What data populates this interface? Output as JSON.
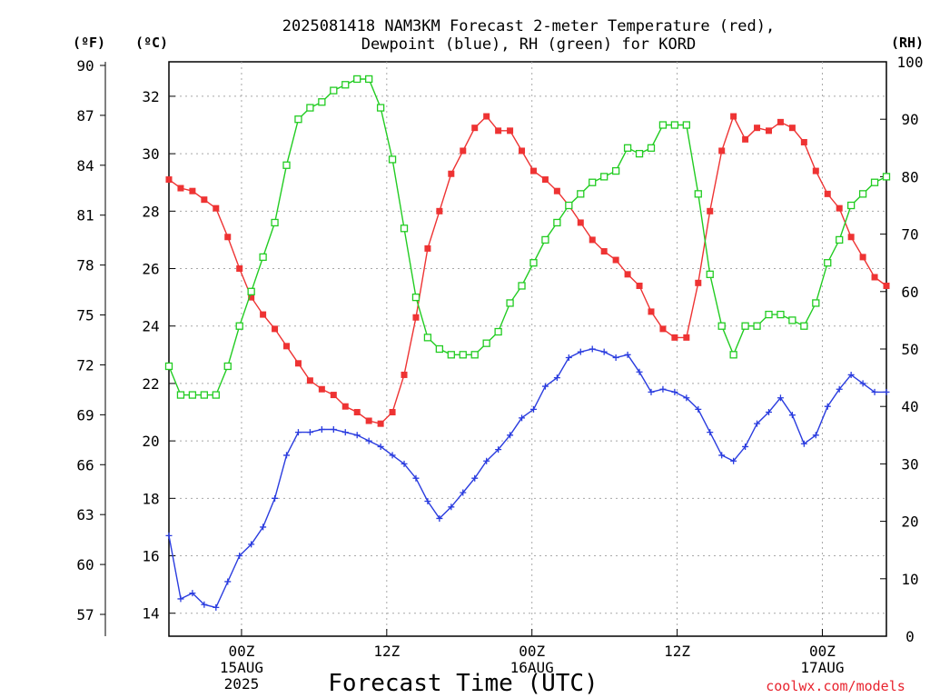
{
  "chart_data": {
    "type": "line",
    "title_lines": [
      "2025081418 NAM3KM Forecast 2-meter Temperature (red),",
      "Dewpoint (blue), RH (green) for KORD"
    ],
    "xlabel": "Forecast Time (UTC)",
    "credit": "coolwx.com/models",
    "units": {
      "fahrenheit": "(ºF)",
      "celsius": "(ºC)",
      "rh": "(RH)"
    },
    "x_hours_from_start": [
      0,
      84
    ],
    "x_ticks": [
      {
        "hour": 8.5,
        "lines": [
          "00Z",
          "15AUG",
          "2025"
        ]
      },
      {
        "hour": 25.5,
        "lines": [
          "12Z"
        ]
      },
      {
        "hour": 42.5,
        "lines": [
          "00Z",
          "16AUG"
        ]
      },
      {
        "hour": 59.5,
        "lines": [
          "12Z"
        ]
      },
      {
        "hour": 76.5,
        "lines": [
          "00Z",
          "17AUG"
        ]
      }
    ],
    "celsius_axis": {
      "range": [
        13.2,
        33.2
      ],
      "ticks": [
        14,
        16,
        18,
        20,
        22,
        24,
        26,
        28,
        30,
        32
      ]
    },
    "fahrenheit_ticks": [
      "90",
      "87",
      "84",
      "81",
      "78",
      "75",
      "72",
      "69",
      "66",
      "63",
      "60",
      "57"
    ],
    "rh_axis": {
      "range": [
        0,
        100
      ],
      "ticks": [
        0,
        10,
        20,
        30,
        40,
        50,
        60,
        70,
        80,
        90,
        100
      ]
    },
    "grid": true,
    "series": [
      {
        "name": "Temperature",
        "axis": "celsius",
        "color": "#ee3333",
        "marker": "filled-square",
        "values": [
          29.1,
          28.8,
          28.7,
          28.4,
          28.1,
          27.1,
          26.0,
          25.0,
          24.4,
          23.9,
          23.3,
          22.7,
          22.1,
          21.8,
          21.6,
          21.2,
          21.0,
          20.7,
          20.6,
          21.0,
          22.3,
          24.3,
          26.7,
          28.0,
          29.3,
          30.1,
          30.9,
          31.3,
          30.8,
          30.8,
          30.1,
          29.4,
          29.1,
          28.7,
          28.2,
          27.6,
          27.0,
          26.6,
          26.3,
          25.8,
          25.4,
          24.5,
          23.9,
          23.6,
          23.6,
          25.5,
          28.0,
          30.1,
          31.3,
          30.5,
          30.9,
          30.8,
          31.1,
          30.9,
          30.4,
          29.4,
          28.6,
          28.1,
          27.1,
          26.4,
          25.7,
          25.4
        ]
      },
      {
        "name": "Dewpoint",
        "axis": "celsius",
        "color": "#2a3cdf",
        "marker": "plus",
        "values": [
          16.7,
          14.5,
          14.7,
          14.3,
          14.2,
          15.1,
          16.0,
          16.4,
          17.0,
          18.0,
          19.5,
          20.3,
          20.3,
          20.4,
          20.4,
          20.3,
          20.2,
          20.0,
          19.8,
          19.5,
          19.2,
          18.7,
          17.9,
          17.3,
          17.7,
          18.2,
          18.7,
          19.3,
          19.7,
          20.2,
          20.8,
          21.1,
          21.9,
          22.2,
          22.9,
          23.1,
          23.2,
          23.1,
          22.9,
          23.0,
          22.4,
          21.7,
          21.8,
          21.7,
          21.5,
          21.1,
          20.3,
          19.5,
          19.3,
          19.8,
          20.6,
          21.0,
          21.5,
          20.9,
          19.9,
          20.2,
          21.2,
          21.8,
          22.3,
          22.0,
          21.7,
          21.7
        ]
      },
      {
        "name": "RH",
        "axis": "rh",
        "color": "#22cc22",
        "marker": "hollow-square",
        "values": [
          47,
          42,
          42,
          42,
          42,
          47,
          54,
          60,
          66,
          72,
          82,
          90,
          92,
          93,
          95,
          96,
          97,
          97,
          92,
          83,
          71,
          59,
          52,
          50,
          49,
          49,
          49,
          51,
          53,
          58,
          61,
          65,
          69,
          72,
          75,
          77,
          79,
          80,
          81,
          85,
          84,
          85,
          89,
          89,
          89,
          77,
          63,
          54,
          49,
          54,
          54,
          56,
          56,
          55,
          54,
          58,
          65,
          69,
          75,
          77,
          79,
          80
        ]
      }
    ]
  }
}
